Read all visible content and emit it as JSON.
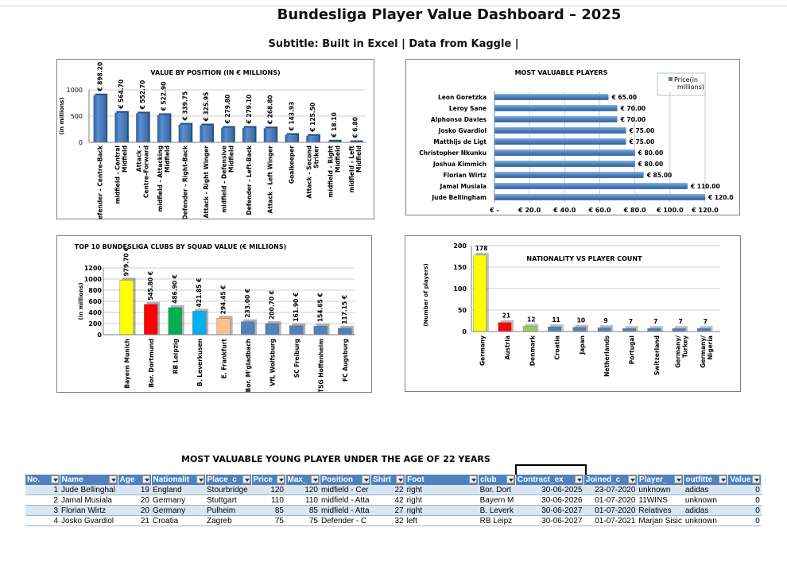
{
  "title": "Bundesliga Player Value Dashboard – 2025",
  "subtitle": "Subtitle: Built in Excel | Data from Kaggle |",
  "chart_data": [
    {
      "type": "bar",
      "title": "VALUE BY POSITION (IN € MILLIONS)",
      "ylabel": "(in millions)",
      "ylim": [
        0,
        1000
      ],
      "yticks": [
        0,
        500,
        1000
      ],
      "categories": [
        "Defender - Centre-Back",
        "midfield - Central Midfield",
        "Attack - Centre-Forward",
        "midfield - Attacking Midfield",
        "Defender - Right-Back",
        "Attack - Right Winger",
        "midfield - Defensive Midfield",
        "Defender - Left-Back",
        "Attack - Left Winger",
        "Goalkeeper",
        "Attack - Second Striker",
        "midfield - Right Midfield",
        "midfield - Left Midfield"
      ],
      "values": [
        898.2,
        564.7,
        552.7,
        522.9,
        339.75,
        325.95,
        279.8,
        279.1,
        268.8,
        143.93,
        125.5,
        18.1,
        6.8
      ],
      "labels": [
        "€ 898.20",
        "€ 564.70",
        "€ 552.70",
        "€ 522.90",
        "€ 339.75",
        "€ 325.95",
        "€ 279.80",
        "€ 279.10",
        "€ 268.80",
        "€ 143.93",
        "€ 125.50",
        "€ 18.10",
        "€ 6.80"
      ]
    },
    {
      "type": "bar",
      "orientation": "horizontal",
      "title": "MOST VALUABLE PLAYERS",
      "legend": "Price(in millions)",
      "xlim": [
        0,
        120
      ],
      "xticks": [
        "€ -",
        "€ 20.0",
        "€ 40.0",
        "€ 60.0",
        "€ 80.0",
        "€ 100.0",
        "€ 120.0"
      ],
      "categories": [
        "Leon Goretzka",
        "Leroy Sane",
        "Alphonso Davies",
        "Josko Gvardiol",
        "Matthijs de Ligt",
        "Christopher Nkunku",
        "Joshua Kimmich",
        "Florian Wirtz",
        "Jamal Musiala",
        "Jude Bellingham"
      ],
      "values": [
        65,
        70,
        70,
        75,
        75,
        80,
        80,
        85,
        110,
        120
      ],
      "labels": [
        "€ 65.00",
        "€ 70.00",
        "€ 70.00",
        "€ 75.00",
        "€ 75.00",
        "€ 80.00",
        "€ 80.00",
        "€ 85.00",
        "€ 110.00",
        "€ 120.0"
      ]
    },
    {
      "type": "bar",
      "title": "TOP 10 BUNDESLIGA CLUBS BY SQUAD VALUE (€ MILLIONS)",
      "ylabel": "(in millions)",
      "ylim": [
        0,
        1200
      ],
      "yticks": [
        0,
        200,
        400,
        600,
        800,
        1000,
        1200
      ],
      "categories": [
        "Bayern Munich",
        "Bor. Dortmund",
        "RB Leipzig",
        "B. Leverkusen",
        "E. Frankfurt",
        "Bor. M'gladbach",
        "VfL Wolfsburg",
        "SC Freiburg",
        "TSG Hoffenheim",
        "FC Augsburg"
      ],
      "values": [
        979.7,
        545.8,
        486.9,
        421.85,
        294.45,
        233.0,
        200.7,
        161.9,
        154.65,
        117.15
      ],
      "labels": [
        "979.70 €",
        "545.80 €",
        "486.90 €",
        "421.85 €",
        "294.45 €",
        "233.00 €",
        "200.70 €",
        "161.90 €",
        "154.65 €",
        "117.15 €"
      ],
      "colors": [
        "#ffff00",
        "#ff0000",
        "#00b050",
        "#00b0f0",
        "#fac090",
        "#4f81bd",
        "#4f81bd",
        "#4f81bd",
        "#4f81bd",
        "#4f81bd"
      ]
    },
    {
      "type": "bar",
      "title": "NATIONALITY VS PLAYER COUNT",
      "ylabel": "(Number of players)",
      "ylim": [
        0,
        200
      ],
      "yticks": [
        0,
        50,
        100,
        150,
        200
      ],
      "categories": [
        "Germany",
        "Austria",
        "Denmark",
        "Croatia",
        "Japan",
        "Netherlands",
        "Portugal",
        "Switzerland",
        "Germany/ Turkey",
        "Germany/ Nigeria"
      ],
      "values": [
        178,
        21,
        12,
        11,
        10,
        9,
        7,
        7,
        7,
        7
      ],
      "colors": [
        "#ffff00",
        "#ff0000",
        "#92d050",
        "#4f81bd",
        "#4f81bd",
        "#4f81bd",
        "#4f81bd",
        "#4f81bd",
        "#4f81bd",
        "#4f81bd"
      ]
    }
  ],
  "table": {
    "title": "MOST VALUABLE YOUNG PLAYER  UNDER THE AGE OF 22 YEARS",
    "headers": [
      "No.",
      "Name",
      "Age",
      "Nationalit",
      "Place_c",
      "Price",
      "Max_",
      "Position",
      "Shirt",
      "Foot",
      "club",
      "Contract_ex",
      "Joined_c",
      "Player_",
      "outfitte",
      "Value"
    ],
    "rows": [
      [
        "1",
        "Jude Bellinghal",
        "19",
        "England",
        "Stourbridge",
        "120",
        "120",
        "midfield - Cer",
        "22",
        "right",
        "Bor. Dort",
        "30-06-2025",
        "23-07-2020",
        "unknown",
        "adidas",
        "0"
      ],
      [
        "2",
        "Jamal Musiala",
        "20",
        "Germany",
        "Stuttgart",
        "110",
        "110",
        "midfield - Atta",
        "42",
        "right",
        "Bayern M",
        "30-06-2026",
        "01-07-2020",
        "11WINS",
        "unknown",
        "0"
      ],
      [
        "3",
        "Florian Wirtz",
        "20",
        "Germany",
        "Pulheim",
        "85",
        "85",
        "midfield - Atta",
        "27",
        "right",
        "B. Leverk",
        "30-06-2027",
        "01-07-2020",
        "Relatives",
        "adidas",
        "0"
      ],
      [
        "4",
        "Josko Gvardiol",
        "21",
        "Croatia",
        "Zagreb",
        "75",
        "75",
        "Defender - C",
        "32",
        "left",
        "RB Leipz",
        "30-06-2027",
        "01-07-2021",
        "Marjan Sisic",
        "unknown",
        "0"
      ]
    ]
  }
}
